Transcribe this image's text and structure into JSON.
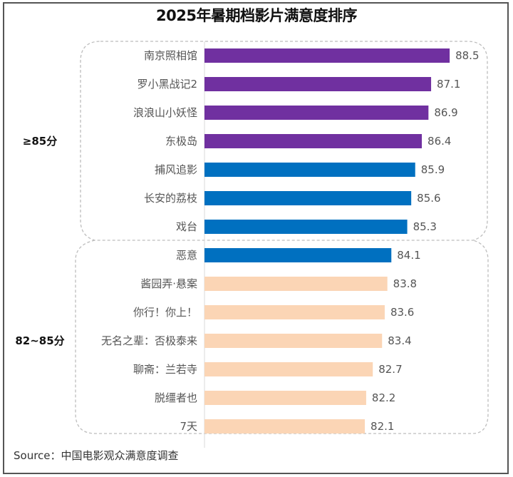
{
  "chart_data": {
    "type": "bar",
    "orientation": "horizontal",
    "title": "2025年暑期档影片满意度排序",
    "xlabel": "",
    "ylabel": "",
    "xlim": [
      70,
      90
    ],
    "grid": false,
    "categories": [
      "南京照相馆",
      "罗小黑战记2",
      "浪浪山小妖怪",
      "东极岛",
      "捕风追影",
      "长安的荔枝",
      "戏台",
      "恶意",
      "酱园弄·悬案",
      "你行！你上！",
      "无名之辈：否极泰来",
      "聊斋：兰若寺",
      "脱缰者也",
      "7天"
    ],
    "values": [
      88.5,
      87.1,
      86.9,
      86.4,
      85.9,
      85.6,
      85.3,
      84.1,
      83.8,
      83.6,
      83.4,
      82.7,
      82.2,
      82.1
    ],
    "value_labels": [
      "88.5",
      "87.1",
      "86.9",
      "86.4",
      "85.9",
      "85.6",
      "85.3",
      "84.1",
      "83.8",
      "83.6",
      "83.4",
      "82.7",
      "82.2",
      "82.1"
    ],
    "bar_colors": [
      "#7030A0",
      "#7030A0",
      "#7030A0",
      "#7030A0",
      "#0070C0",
      "#0070C0",
      "#0070C0",
      "#0070C0",
      "#FBD5B5",
      "#FBD5B5",
      "#FBD5B5",
      "#FBD5B5",
      "#FBD5B5",
      "#FBD5B5"
    ],
    "groups": [
      {
        "label": "≥85分",
        "first_index": 0,
        "last_index": 6
      },
      {
        "label": "82~85分",
        "first_index": 7,
        "last_index": 13
      }
    ],
    "source": "Source：中国电影观众满意度调查"
  },
  "colors": {
    "purple": "#7030A0",
    "blue": "#0070C0",
    "peach": "#FBD5B5",
    "dashed_outline": "#bdbdbd",
    "axis_line": "#d9d9d9"
  }
}
